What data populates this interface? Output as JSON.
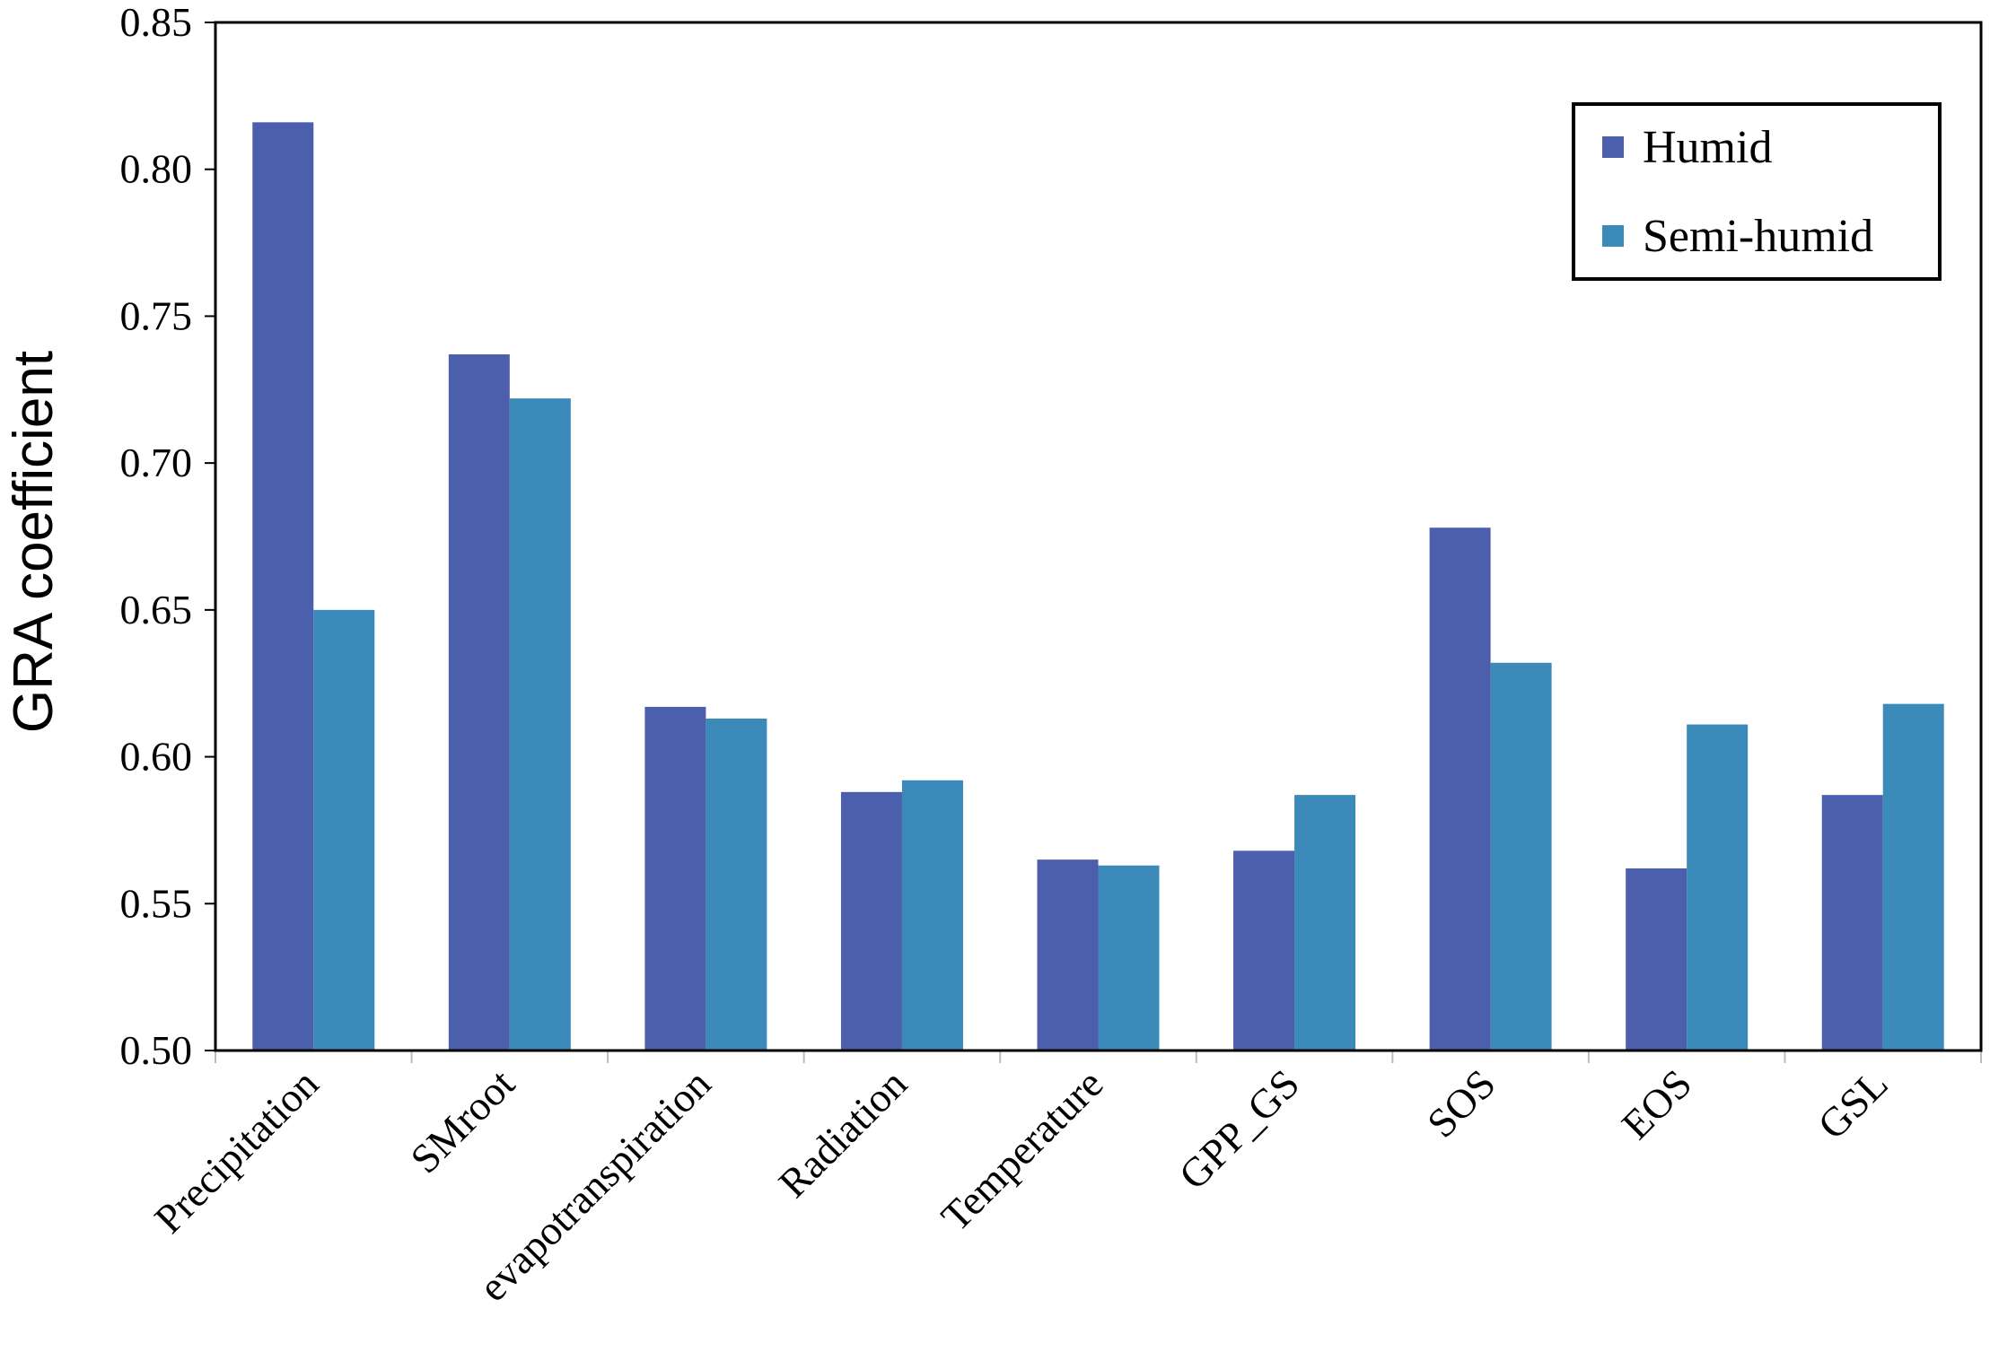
{
  "chart_data": {
    "type": "bar",
    "categories": [
      "Precipitation",
      "SMroot",
      "evapotranspiration",
      "Radiation",
      "Temperature",
      "GPP_GS",
      "SOS",
      "EOS",
      "GSL"
    ],
    "series": [
      {
        "name": "Humid",
        "color": "#4C5FAD",
        "values": [
          0.816,
          0.737,
          0.617,
          0.588,
          0.565,
          0.568,
          0.678,
          0.562,
          0.587
        ]
      },
      {
        "name": "Semi-humid",
        "color": "#3B8AB9",
        "values": [
          0.65,
          0.722,
          0.613,
          0.592,
          0.563,
          0.587,
          0.632,
          0.611,
          0.618
        ]
      }
    ],
    "ylabel": "GRA  coefficient",
    "xlabel": "",
    "ylim": [
      0.5,
      0.85
    ],
    "yticks": [
      "0.50",
      "0.55",
      "0.60",
      "0.65",
      "0.70",
      "0.75",
      "0.80",
      "0.85"
    ],
    "grid": false,
    "legend_position": "top-right"
  }
}
